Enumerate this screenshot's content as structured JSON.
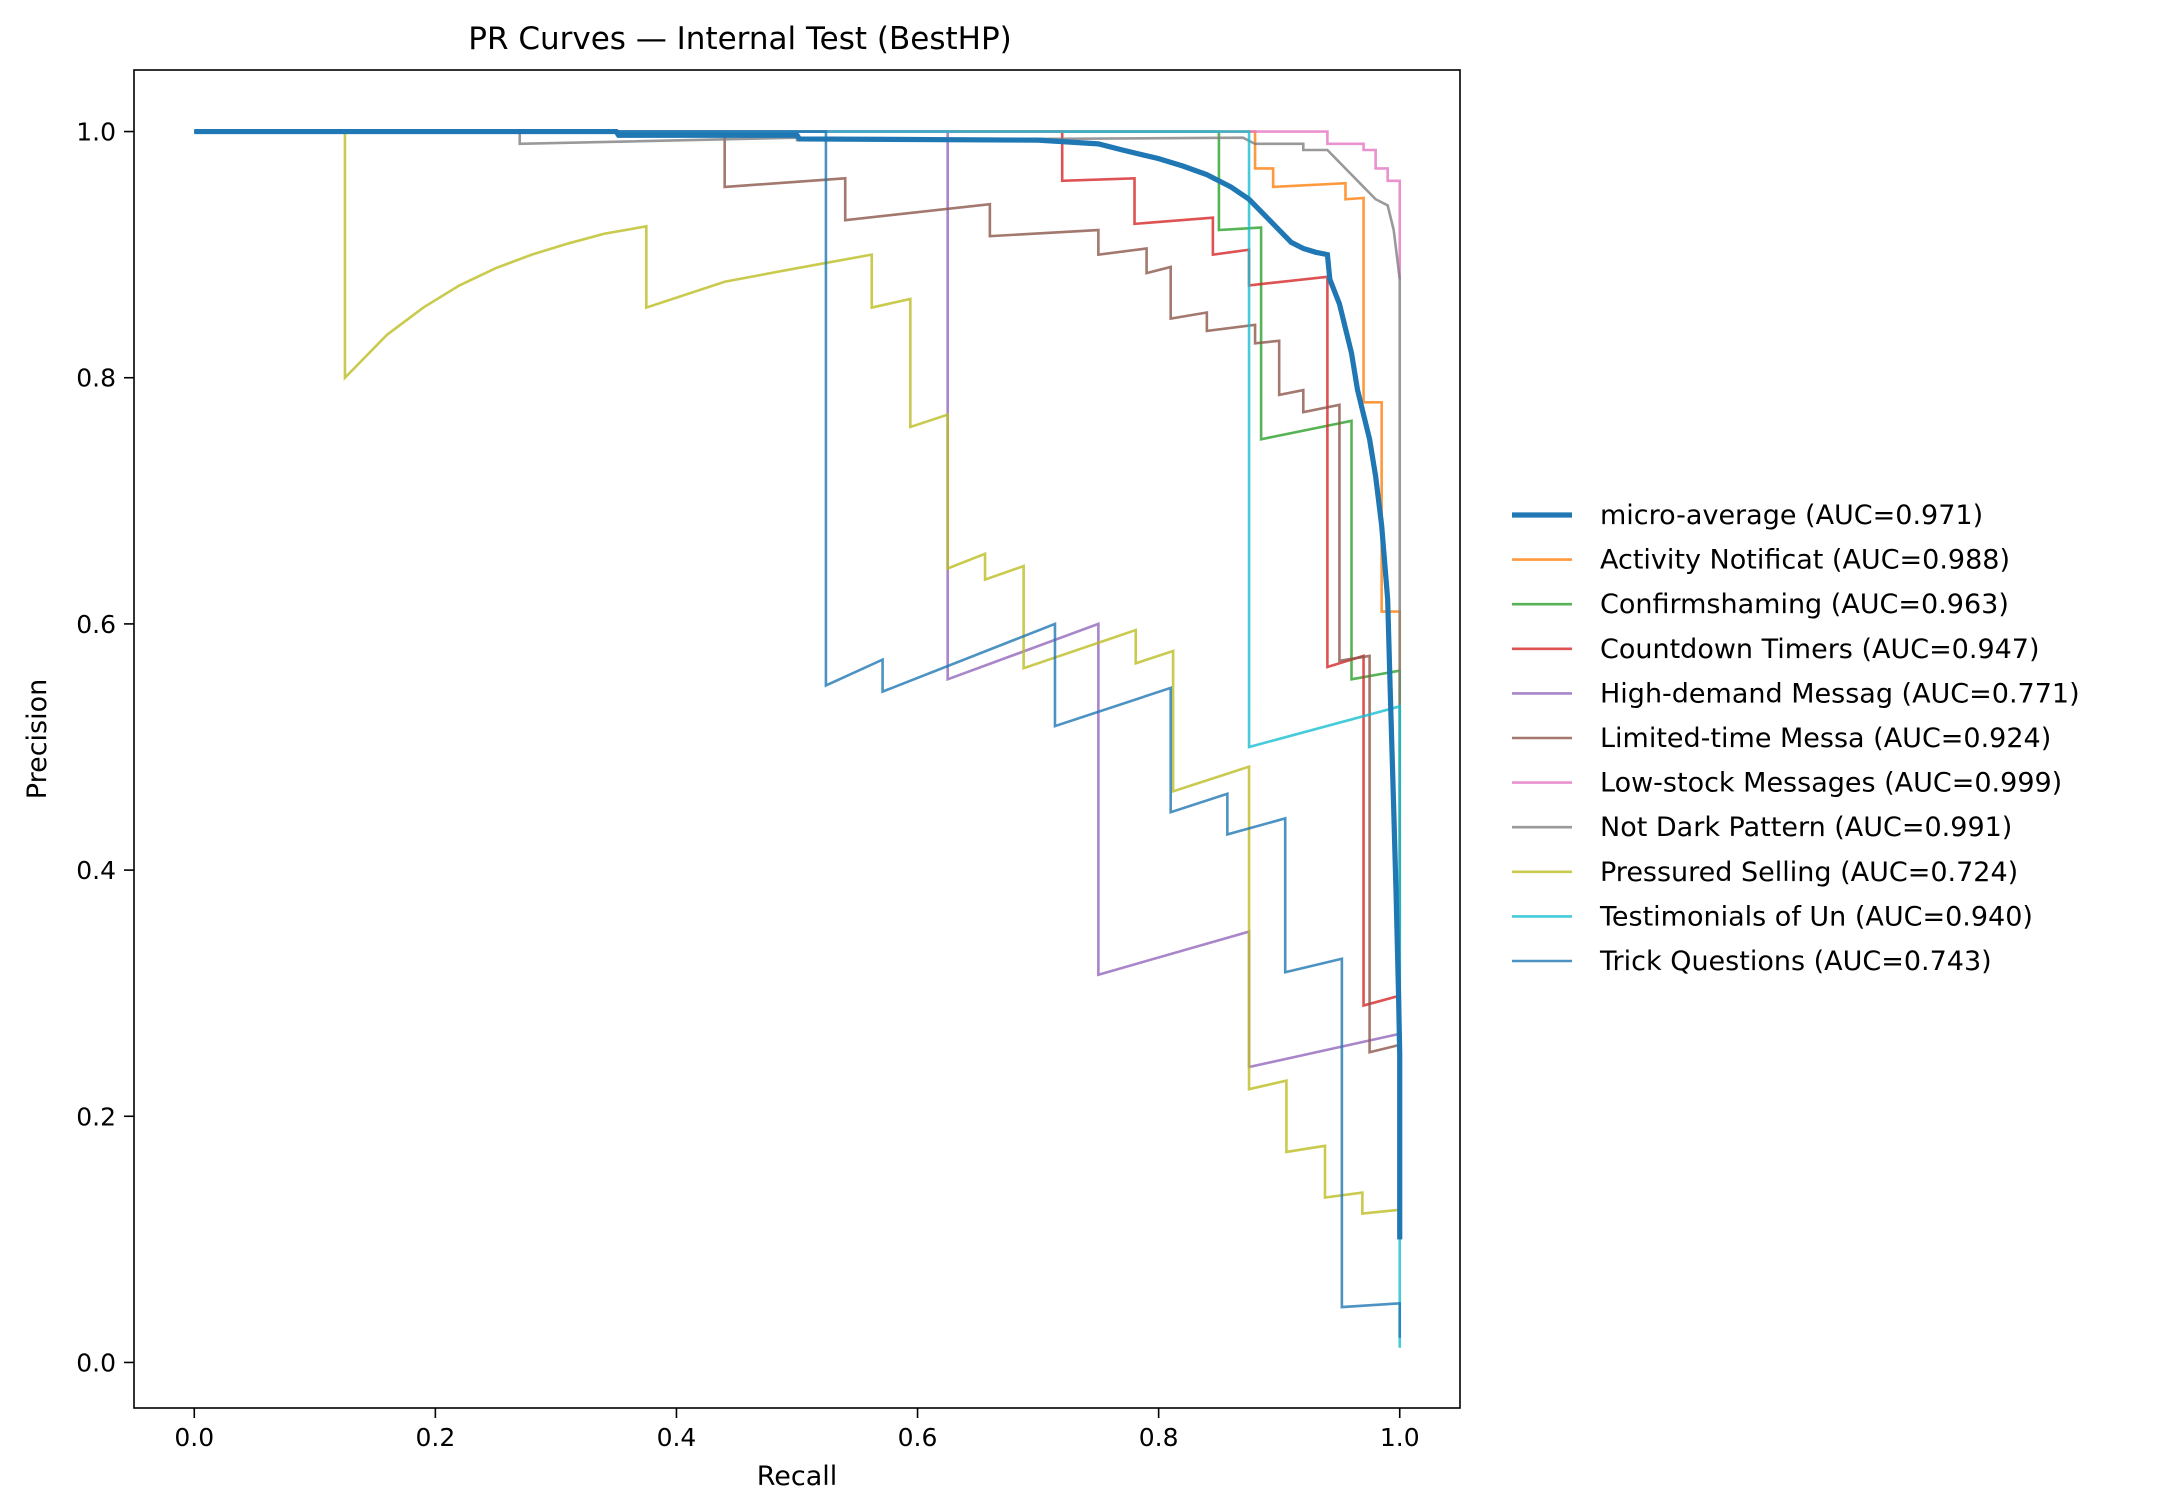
{
  "chart_data": {
    "type": "line",
    "title": "PR Curves — Internal Test (BestHP)",
    "xlabel": "Recall",
    "ylabel": "Precision",
    "xlim": [
      -0.05,
      1.05
    ],
    "ylim": [
      -0.037,
      1.05
    ],
    "xticks": [
      "0.0",
      "0.2",
      "0.4",
      "0.6",
      "0.8",
      "1.0"
    ],
    "yticks": [
      "0.0",
      "0.2",
      "0.4",
      "0.6",
      "0.8",
      "1.0"
    ],
    "grid": false,
    "legend_position": "center-right outside",
    "series": [
      {
        "name": "micro-average (AUC=0.971)",
        "color": "#1f77b4",
        "emphasis": true,
        "points": [
          [
            0,
            1.0
          ],
          [
            0.35,
            1.0
          ],
          [
            0.352,
            0.997
          ],
          [
            0.5,
            0.997
          ],
          [
            0.502,
            0.994
          ],
          [
            0.7,
            0.993
          ],
          [
            0.75,
            0.99
          ],
          [
            0.77,
            0.985
          ],
          [
            0.8,
            0.978
          ],
          [
            0.82,
            0.972
          ],
          [
            0.84,
            0.965
          ],
          [
            0.86,
            0.955
          ],
          [
            0.875,
            0.945
          ],
          [
            0.89,
            0.93
          ],
          [
            0.9,
            0.92
          ],
          [
            0.91,
            0.91
          ],
          [
            0.92,
            0.905
          ],
          [
            0.93,
            0.902
          ],
          [
            0.94,
            0.9
          ],
          [
            0.942,
            0.88
          ],
          [
            0.95,
            0.86
          ],
          [
            0.955,
            0.84
          ],
          [
            0.96,
            0.82
          ],
          [
            0.965,
            0.79
          ],
          [
            0.97,
            0.77
          ],
          [
            0.975,
            0.75
          ],
          [
            0.98,
            0.72
          ],
          [
            0.985,
            0.68
          ],
          [
            0.99,
            0.62
          ],
          [
            0.992,
            0.55
          ],
          [
            0.995,
            0.45
          ],
          [
            0.997,
            0.38
          ],
          [
            0.999,
            0.3
          ],
          [
            1.0,
            0.25
          ],
          [
            1.0,
            0.1
          ]
        ]
      },
      {
        "name": "Activity Notificat (AUC=0.988)",
        "color": "#ff7f0e",
        "points": [
          [
            0,
            1.0
          ],
          [
            0.88,
            1.0
          ],
          [
            0.88,
            0.97
          ],
          [
            0.895,
            0.97
          ],
          [
            0.895,
            0.955
          ],
          [
            0.955,
            0.958
          ],
          [
            0.955,
            0.945
          ],
          [
            0.97,
            0.946
          ],
          [
            0.97,
            0.78
          ],
          [
            0.985,
            0.78
          ],
          [
            0.985,
            0.61
          ],
          [
            1.0,
            0.61
          ],
          [
            1.0,
            0.15
          ]
        ]
      },
      {
        "name": "Confirmshaming (AUC=0.963)",
        "color": "#2ca02c",
        "points": [
          [
            0,
            1.0
          ],
          [
            0.85,
            1.0
          ],
          [
            0.85,
            0.92
          ],
          [
            0.885,
            0.922
          ],
          [
            0.885,
            0.75
          ],
          [
            0.96,
            0.765
          ],
          [
            0.96,
            0.555
          ],
          [
            1.0,
            0.562
          ],
          [
            1.0,
            0.1
          ]
        ]
      },
      {
        "name": "Countdown Timers (AUC=0.947)",
        "color": "#d62728",
        "points": [
          [
            0,
            1.0
          ],
          [
            0.72,
            1.0
          ],
          [
            0.72,
            0.96
          ],
          [
            0.78,
            0.962
          ],
          [
            0.78,
            0.925
          ],
          [
            0.845,
            0.93
          ],
          [
            0.845,
            0.9
          ],
          [
            0.875,
            0.904
          ],
          [
            0.875,
            0.875
          ],
          [
            0.94,
            0.882
          ],
          [
            0.94,
            0.565
          ],
          [
            0.97,
            0.574
          ],
          [
            0.97,
            0.29
          ],
          [
            1.0,
            0.298
          ],
          [
            1.0,
            0.1
          ]
        ]
      },
      {
        "name": "High-demand Messag (AUC=0.771)",
        "color": "#9467bd",
        "points": [
          [
            0,
            1.0
          ],
          [
            0.625,
            1.0
          ],
          [
            0.625,
            0.555
          ],
          [
            0.75,
            0.6
          ],
          [
            0.75,
            0.315
          ],
          [
            0.875,
            0.35
          ],
          [
            0.875,
            0.24
          ],
          [
            1.0,
            0.267
          ],
          [
            1.0,
            0.1
          ]
        ]
      },
      {
        "name": "Limited-time Messa (AUC=0.924)",
        "color": "#8c564b",
        "points": [
          [
            0,
            1.0
          ],
          [
            0.44,
            1.0
          ],
          [
            0.44,
            0.955
          ],
          [
            0.54,
            0.962
          ],
          [
            0.54,
            0.928
          ],
          [
            0.66,
            0.941
          ],
          [
            0.66,
            0.915
          ],
          [
            0.75,
            0.92
          ],
          [
            0.75,
            0.9
          ],
          [
            0.79,
            0.905
          ],
          [
            0.79,
            0.885
          ],
          [
            0.81,
            0.89
          ],
          [
            0.81,
            0.848
          ],
          [
            0.84,
            0.853
          ],
          [
            0.84,
            0.838
          ],
          [
            0.88,
            0.843
          ],
          [
            0.88,
            0.828
          ],
          [
            0.9,
            0.83
          ],
          [
            0.9,
            0.786
          ],
          [
            0.92,
            0.79
          ],
          [
            0.92,
            0.772
          ],
          [
            0.95,
            0.778
          ],
          [
            0.95,
            0.57
          ],
          [
            0.975,
            0.574
          ],
          [
            0.975,
            0.252
          ],
          [
            1.0,
            0.258
          ],
          [
            1.0,
            0.1
          ]
        ]
      },
      {
        "name": "Low-stock Messages (AUC=0.999)",
        "color": "#e377c2",
        "points": [
          [
            0,
            1.0
          ],
          [
            0.94,
            1.0
          ],
          [
            0.94,
            0.99
          ],
          [
            0.97,
            0.99
          ],
          [
            0.97,
            0.985
          ],
          [
            0.98,
            0.985
          ],
          [
            0.98,
            0.97
          ],
          [
            0.99,
            0.97
          ],
          [
            0.99,
            0.96
          ],
          [
            1.0,
            0.96
          ],
          [
            1.0,
            0.88
          ]
        ]
      },
      {
        "name": "Not Dark Pattern (AUC=0.991)",
        "color": "#7f7f7f",
        "points": [
          [
            0,
            1.0
          ],
          [
            0.27,
            1.0
          ],
          [
            0.27,
            0.99
          ],
          [
            0.5,
            0.995
          ],
          [
            0.5,
            0.993
          ],
          [
            0.7,
            0.994
          ],
          [
            0.87,
            0.995
          ],
          [
            0.88,
            0.99
          ],
          [
            0.92,
            0.99
          ],
          [
            0.92,
            0.985
          ],
          [
            0.94,
            0.985
          ],
          [
            0.95,
            0.975
          ],
          [
            0.96,
            0.965
          ],
          [
            0.97,
            0.955
          ],
          [
            0.98,
            0.945
          ],
          [
            0.99,
            0.94
          ],
          [
            0.995,
            0.92
          ],
          [
            1.0,
            0.88
          ],
          [
            1.0,
            0.1
          ]
        ]
      },
      {
        "name": "Pressured Selling (AUC=0.724)",
        "color": "#bcbd22",
        "points": [
          [
            0,
            1.0
          ],
          [
            0.125,
            1.0
          ],
          [
            0.125,
            0.8
          ],
          [
            0.16,
            0.835
          ],
          [
            0.19,
            0.857
          ],
          [
            0.22,
            0.875
          ],
          [
            0.25,
            0.889
          ],
          [
            0.28,
            0.9
          ],
          [
            0.31,
            0.909
          ],
          [
            0.34,
            0.917
          ],
          [
            0.375,
            0.923
          ],
          [
            0.375,
            0.857
          ],
          [
            0.44,
            0.878
          ],
          [
            0.5,
            0.889
          ],
          [
            0.562,
            0.9
          ],
          [
            0.562,
            0.857
          ],
          [
            0.594,
            0.864
          ],
          [
            0.594,
            0.76
          ],
          [
            0.625,
            0.77
          ],
          [
            0.625,
            0.645
          ],
          [
            0.656,
            0.657
          ],
          [
            0.656,
            0.636
          ],
          [
            0.688,
            0.647
          ],
          [
            0.688,
            0.564
          ],
          [
            0.781,
            0.595
          ],
          [
            0.781,
            0.568
          ],
          [
            0.812,
            0.578
          ],
          [
            0.812,
            0.464
          ],
          [
            0.875,
            0.484
          ],
          [
            0.875,
            0.222
          ],
          [
            0.906,
            0.229
          ],
          [
            0.906,
            0.171
          ],
          [
            0.938,
            0.176
          ],
          [
            0.938,
            0.134
          ],
          [
            0.969,
            0.138
          ],
          [
            0.969,
            0.121
          ],
          [
            1.0,
            0.124
          ],
          [
            1.0,
            0.1
          ]
        ]
      },
      {
        "name": "Testimonials of Un (AUC=0.940)",
        "color": "#17becf",
        "points": [
          [
            0,
            1.0
          ],
          [
            0.875,
            1.0
          ],
          [
            0.875,
            0.5
          ],
          [
            1.0,
            0.533
          ],
          [
            1.0,
            0.012
          ]
        ]
      },
      {
        "name": "Trick Questions (AUC=0.743)",
        "color": "#1f77b4",
        "points": [
          [
            0,
            1.0
          ],
          [
            0.524,
            1.0
          ],
          [
            0.524,
            0.55
          ],
          [
            0.571,
            0.571
          ],
          [
            0.571,
            0.545
          ],
          [
            0.714,
            0.6
          ],
          [
            0.714,
            0.517
          ],
          [
            0.81,
            0.548
          ],
          [
            0.81,
            0.447
          ],
          [
            0.857,
            0.462
          ],
          [
            0.857,
            0.429
          ],
          [
            0.905,
            0.442
          ],
          [
            0.905,
            0.317
          ],
          [
            0.952,
            0.328
          ],
          [
            0.952,
            0.045
          ],
          [
            1.0,
            0.048
          ],
          [
            1.0,
            0.02
          ]
        ]
      }
    ]
  }
}
